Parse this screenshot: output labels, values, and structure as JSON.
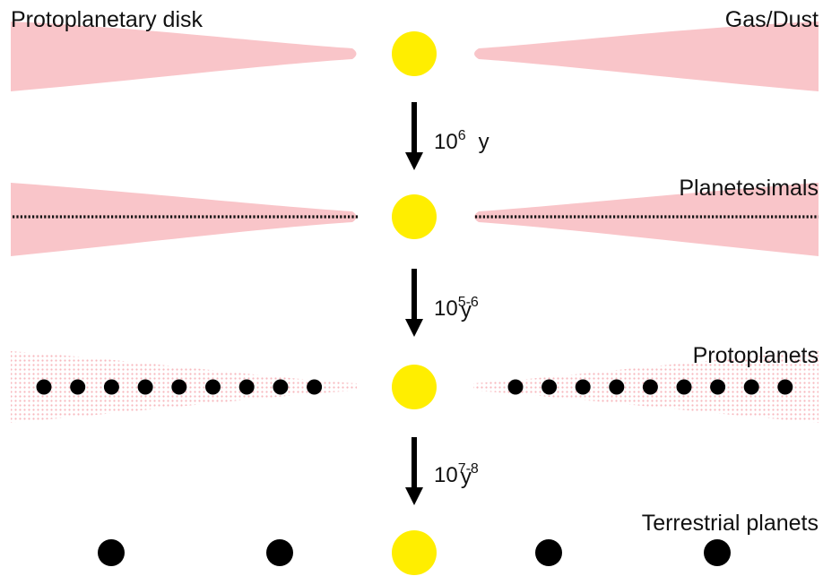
{
  "labels": {
    "protoplanetary_disk": "Protoplanetary disk",
    "gas_dust": "Gas/Dust",
    "planetesimals": "Planetesimals",
    "protoplanets": "Protoplanets",
    "terrestrial_planets": "Terrestrial planets"
  },
  "transitions": [
    {
      "base": "10",
      "exponent": "6",
      "unit": "y"
    },
    {
      "base": "10",
      "exponent": "5-6",
      "unit": "y"
    },
    {
      "base": "10",
      "exponent": "7-8",
      "unit": "y"
    }
  ],
  "colors": {
    "disk": "#f9c5c9",
    "star": "#ffee00",
    "body": "#000000",
    "arrow": "#000000"
  },
  "protoplanet_count_per_side": 9,
  "terrestrial_planet_count": 4
}
